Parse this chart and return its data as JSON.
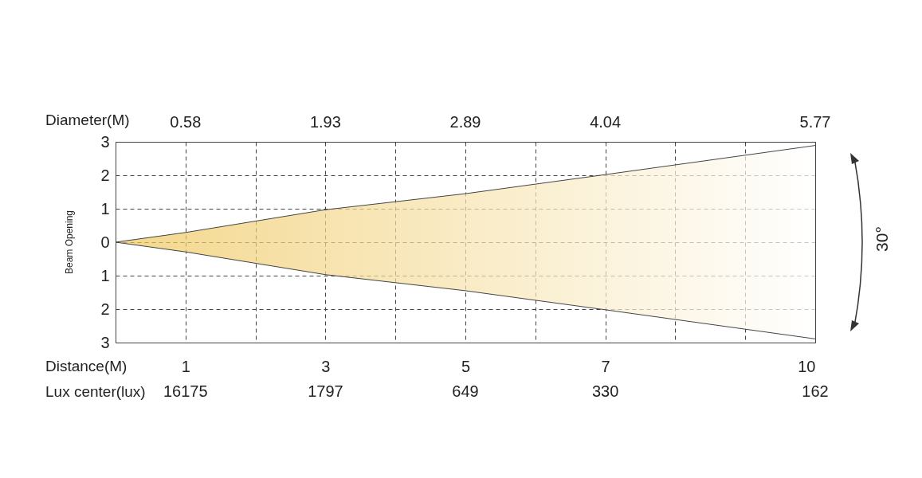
{
  "chart_data": {
    "type": "area",
    "xlabel": "Distance(M)",
    "ylabel": "Beam Opening",
    "annotations": [
      "Diameter(M)",
      "Lux center(lux)",
      "30°",
      "0.58",
      "1.93",
      "2.89",
      "4.04",
      "5.77",
      "16175",
      "1797",
      "649",
      "330",
      "162"
    ],
    "x": [
      0,
      1,
      3,
      5,
      7,
      10
    ],
    "series": [
      {
        "color": "#eec65a",
        "values": [
          0,
          0.29,
          0.97,
          1.45,
          2.02,
          2.89
        ]
      },
      {
        "color": "#eec65a",
        "values": [
          0,
          -0.29,
          -0.97,
          -1.45,
          -2.02,
          -2.89
        ]
      }
    ],
    "xlim": [
      0,
      10
    ],
    "xticks": [
      {
        "value": 0,
        "label": null
      },
      1,
      {
        "value": 2,
        "label": null
      },
      3,
      {
        "value": 4,
        "label": null
      },
      5,
      {
        "value": 6,
        "label": null
      },
      7,
      {
        "value": 8,
        "label": null
      },
      {
        "value": 9,
        "label": null
      },
      10
    ],
    "ylim": [
      -3,
      3
    ],
    "yticks": [
      {
        "value": -3,
        "label": "3"
      },
      {
        "value": -2,
        "label": "2"
      },
      {
        "value": -1,
        "label": "1"
      },
      0,
      1,
      2,
      3
    ],
    "grid": true
  }
}
